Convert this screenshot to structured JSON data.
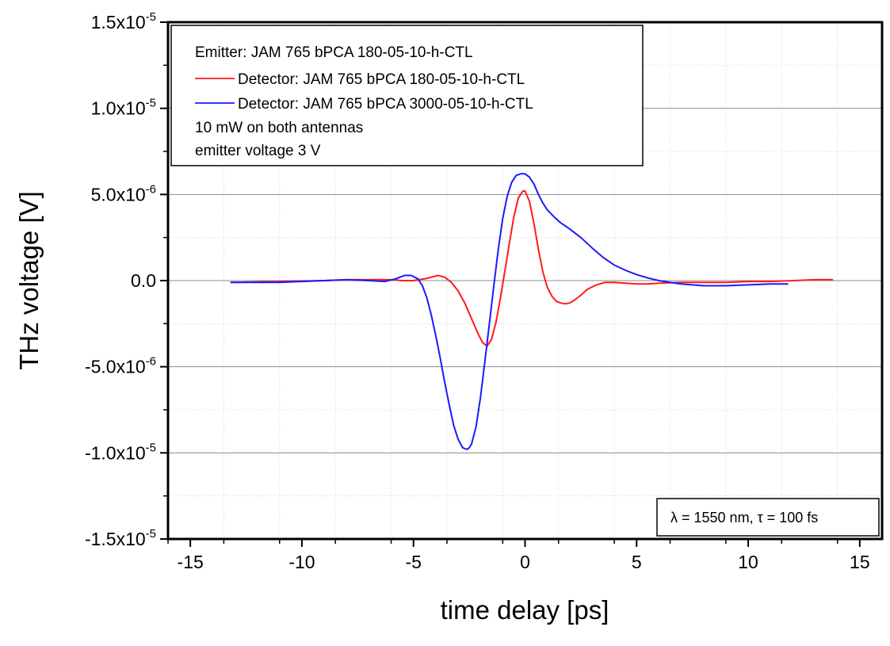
{
  "chart_data": {
    "type": "line",
    "xlabel": "time delay [ps]",
    "ylabel": "THz voltage [V]",
    "xlim": [
      -16,
      16
    ],
    "ylim": [
      -1.5e-05,
      1.5e-05
    ],
    "x_ticks": [
      -15,
      -10,
      -5,
      0,
      5,
      10,
      15
    ],
    "x_tick_labels": [
      "-15",
      "-10",
      "-5",
      "0",
      "5",
      "10",
      "15"
    ],
    "y_ticks": [
      -1.5e-05,
      -1e-05,
      -5e-06,
      0,
      5e-06,
      1e-05,
      1.5e-05
    ],
    "y_tick_labels": [
      {
        "mantissa": "-1.5x10",
        "exp": "-5"
      },
      {
        "mantissa": "-1.0x10",
        "exp": "-5"
      },
      {
        "mantissa": "-5.0x10",
        "exp": "-6"
      },
      {
        "mantissa": "0.0",
        "exp": ""
      },
      {
        "mantissa": "5.0x10",
        "exp": "-6"
      },
      {
        "mantissa": "1.0x10",
        "exp": "-5"
      },
      {
        "mantissa": "1.5x10",
        "exp": "-5"
      }
    ],
    "grid": true,
    "legend": {
      "placement": "top-left",
      "header": "Emitter: JAM 765 bPCA 180-05-10-h-CTL",
      "notes": [
        "10 mW on both antennas",
        "emitter voltage 3 V"
      ]
    },
    "annotation": "λ = 1550 nm, τ = 100 fs",
    "series": [
      {
        "name": "Detector: JAM 765 bPCA 180-05-10-h-CTL",
        "color": "#ff1a1a",
        "x": [
          -13.2,
          -11,
          -9,
          -8,
          -7,
          -6,
          -5.5,
          -5,
          -4.5,
          -4.2,
          -3.9,
          -3.6,
          -3.3,
          -3,
          -2.7,
          -2.4,
          -2.1,
          -1.9,
          -1.7,
          -1.5,
          -1.3,
          -1.1,
          -0.9,
          -0.7,
          -0.5,
          -0.3,
          -0.1,
          0,
          0.2,
          0.4,
          0.6,
          0.8,
          1.0,
          1.2,
          1.4,
          1.6,
          1.8,
          2.0,
          2.2,
          2.5,
          2.8,
          3.2,
          3.6,
          4.0,
          4.5,
          5.0,
          5.5,
          6.0,
          7.0,
          8.0,
          9.0,
          10.0,
          11.0,
          12.0,
          13.0,
          13.8
        ],
        "values": [
          -1e-07,
          -5e-08,
          0,
          5e-08,
          5e-08,
          5e-08,
          0,
          0,
          1e-07,
          2e-07,
          3e-07,
          2e-07,
          -1e-07,
          -6e-07,
          -1.3e-06,
          -2.2e-06,
          -3.1e-06,
          -3.6e-06,
          -3.8e-06,
          -3.4e-06,
          -2.4e-06,
          -1e-06,
          6e-07,
          2.2e-06,
          3.7e-06,
          4.8e-06,
          5.2e-06,
          5.2e-06,
          4.6e-06,
          3.3e-06,
          1.8e-06,
          5e-07,
          -4e-07,
          -9e-07,
          -1.2e-06,
          -1.3e-06,
          -1.35e-06,
          -1.3e-06,
          -1.15e-06,
          -8.5e-07,
          -5e-07,
          -2.5e-07,
          -1e-07,
          -1e-07,
          -1.5e-07,
          -2e-07,
          -2e-07,
          -1.5e-07,
          -1e-07,
          -1e-07,
          -1e-07,
          -5e-08,
          -5e-08,
          0,
          5e-08,
          5e-08
        ]
      },
      {
        "name": "Detector: JAM 765 bPCA 3000-05-10-h-CTL",
        "color": "#1a1aff",
        "x": [
          -13.2,
          -11,
          -9,
          -8,
          -7,
          -6.3,
          -5.8,
          -5.4,
          -5.1,
          -4.8,
          -4.6,
          -4.4,
          -4.2,
          -4.0,
          -3.8,
          -3.6,
          -3.4,
          -3.2,
          -3.0,
          -2.8,
          -2.6,
          -2.5,
          -2.4,
          -2.2,
          -2.0,
          -1.8,
          -1.6,
          -1.4,
          -1.2,
          -1.0,
          -0.8,
          -0.6,
          -0.4,
          -0.2,
          0,
          0.2,
          0.4,
          0.6,
          0.8,
          1.0,
          1.3,
          1.6,
          2.0,
          2.5,
          3.0,
          3.5,
          4.0,
          4.5,
          5.0,
          5.5,
          6.0,
          6.5,
          7.0,
          7.5,
          8.0,
          9.0,
          10.0,
          11.0,
          11.8
        ],
        "values": [
          -1e-07,
          -1e-07,
          0,
          5e-08,
          0,
          -5e-08,
          1e-07,
          3e-07,
          3e-07,
          1e-07,
          -3e-07,
          -1e-06,
          -2e-06,
          -3.2e-06,
          -4.5e-06,
          -5.9e-06,
          -7.2e-06,
          -8.4e-06,
          -9.2e-06,
          -9.7e-06,
          -9.8e-06,
          -9.7e-06,
          -9.5e-06,
          -8.5e-06,
          -6.8e-06,
          -4.7e-06,
          -2.5e-06,
          -3e-07,
          1.8e-06,
          3.6e-06,
          4.9e-06,
          5.7e-06,
          6.1e-06,
          6.2e-06,
          6.2e-06,
          6e-06,
          5.6e-06,
          5e-06,
          4.5e-06,
          4.1e-06,
          3.7e-06,
          3.35e-06,
          3e-06,
          2.5e-06,
          1.9e-06,
          1.35e-06,
          9e-07,
          6e-07,
          3.5e-07,
          1.5e-07,
          0,
          -1e-07,
          -2e-07,
          -2.5e-07,
          -3e-07,
          -3e-07,
          -2.5e-07,
          -2e-07,
          -2e-07
        ]
      }
    ]
  }
}
